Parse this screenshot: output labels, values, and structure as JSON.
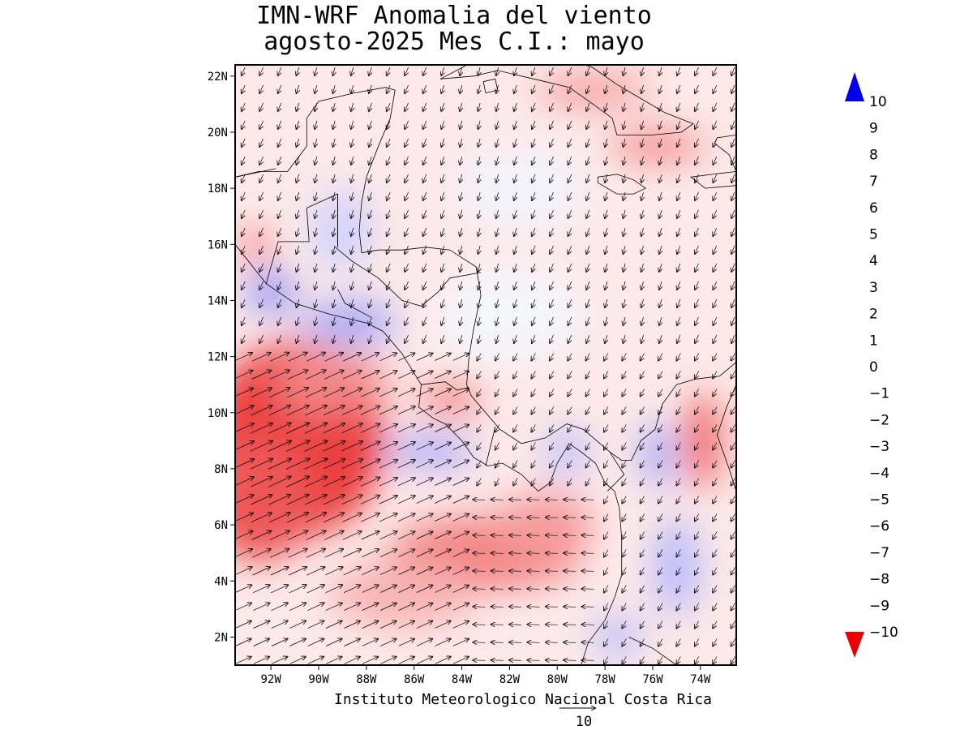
{
  "title": {
    "line1": "IMN-WRF Anomalia del viento",
    "line2": "agosto-2025 Mes C.I.: mayo"
  },
  "credit": "Instituto Meteorologico Nacional Costa Rica",
  "reference_vector": {
    "label": "10",
    "magnitude": 10
  },
  "axes": {
    "lat_ticks": [
      "2N",
      "4N",
      "6N",
      "8N",
      "10N",
      "12N",
      "14N",
      "16N",
      "18N",
      "20N",
      "22N"
    ],
    "lon_ticks": [
      "92W",
      "90W",
      "88W",
      "86W",
      "84W",
      "82W",
      "80W",
      "78W",
      "76W",
      "74W"
    ],
    "lon_range_deg_east": [
      -93.5,
      -72.5
    ],
    "lat_range_deg_north": [
      1.0,
      22.4
    ]
  },
  "colorbar": {
    "labels": [
      "10",
      "9",
      "8",
      "7",
      "6",
      "5",
      "4",
      "3",
      "2",
      "1",
      "0",
      "−1",
      "−2",
      "−3",
      "−4",
      "−5",
      "−6",
      "−7",
      "−8",
      "−9",
      "−10"
    ],
    "colors": [
      "#1e1ef0",
      "#3434f2",
      "#4b4bf4",
      "#6262f5",
      "#7878f6",
      "#8f8ff7",
      "#a6a6f9",
      "#bcbcfb",
      "#d3d3fc",
      "#e9e9fe",
      "#ffffff",
      "#fde3e3",
      "#fbcccc",
      "#f8b4b4",
      "#f59c9c",
      "#f38585",
      "#f06d6d",
      "#ee5656",
      "#eb3e3e",
      "#e92727"
    ],
    "arrow_top_color": "#0000ee",
    "arrow_bottom_color": "#ee0000"
  },
  "anomaly_regions": [
    {
      "sign": "negative",
      "strength": 7,
      "center": [
        -91.5,
        8.5
      ],
      "desc": "strong red Pacific west"
    },
    {
      "sign": "negative",
      "strength": 5,
      "center": [
        -83.5,
        5.0
      ],
      "desc": "red band south of Costa Rica"
    },
    {
      "sign": "negative",
      "strength": 6,
      "center": [
        -73.8,
        9.0
      ],
      "desc": "red strip near Colombia"
    },
    {
      "sign": "negative",
      "strength": 5,
      "center": [
        -76.0,
        19.5
      ],
      "desc": "red near Cuba"
    },
    {
      "sign": "positive",
      "strength": 4,
      "center": [
        -88.5,
        13.2
      ],
      "desc": "blue Gulf of Fonseca area"
    },
    {
      "sign": "positive",
      "strength": 4,
      "center": [
        -85.3,
        8.6
      ],
      "desc": "blue off Nicoya"
    },
    {
      "sign": "positive",
      "strength": 4,
      "center": [
        -75.5,
        4.5
      ],
      "desc": "blue over Colombia"
    }
  ]
}
